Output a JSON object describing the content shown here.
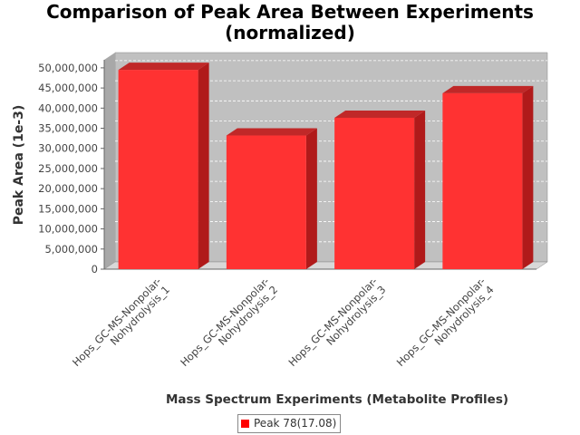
{
  "chart_data": {
    "type": "bar",
    "title_line1": "Comparison of Peak Area Between Experiments",
    "title_line2": "(normalized)",
    "xlabel": "Mass Spectrum Experiments (Metabolite Profiles)",
    "ylabel": "Peak Area (1e-3)",
    "categories": [
      [
        "Hops_GC-MS-Nonpolar-",
        "Nohydrolysis_1"
      ],
      [
        "Hops_GC-MS-Nonpolar-",
        "Nohydrolysis_2"
      ],
      [
        "Hops_GC-MS-Nonpolar-",
        "Nohydrolysis_3"
      ],
      [
        "Hops_GC-MS-Nonpolar-",
        "Nohydrolysis_4"
      ]
    ],
    "series": [
      {
        "name": "Peak 78(17.08)",
        "color": "#ff0000",
        "values": [
          49500000,
          33200000,
          37600000,
          43700000
        ]
      }
    ],
    "ylim": [
      0,
      52000000
    ],
    "yticks": [
      0,
      5000000,
      10000000,
      15000000,
      20000000,
      25000000,
      30000000,
      35000000,
      40000000,
      45000000,
      50000000
    ],
    "ytick_labels": [
      "0",
      "5,000,000",
      "10,000,000",
      "15,000,000",
      "20,000,000",
      "25,000,000",
      "30,000,000",
      "35,000,000",
      "40,000,000",
      "45,000,000",
      "50,000,000"
    ],
    "grid": true,
    "legend_position": "bottom",
    "plot_background": "#c0c0c0",
    "bar_color": "#ff0000"
  }
}
